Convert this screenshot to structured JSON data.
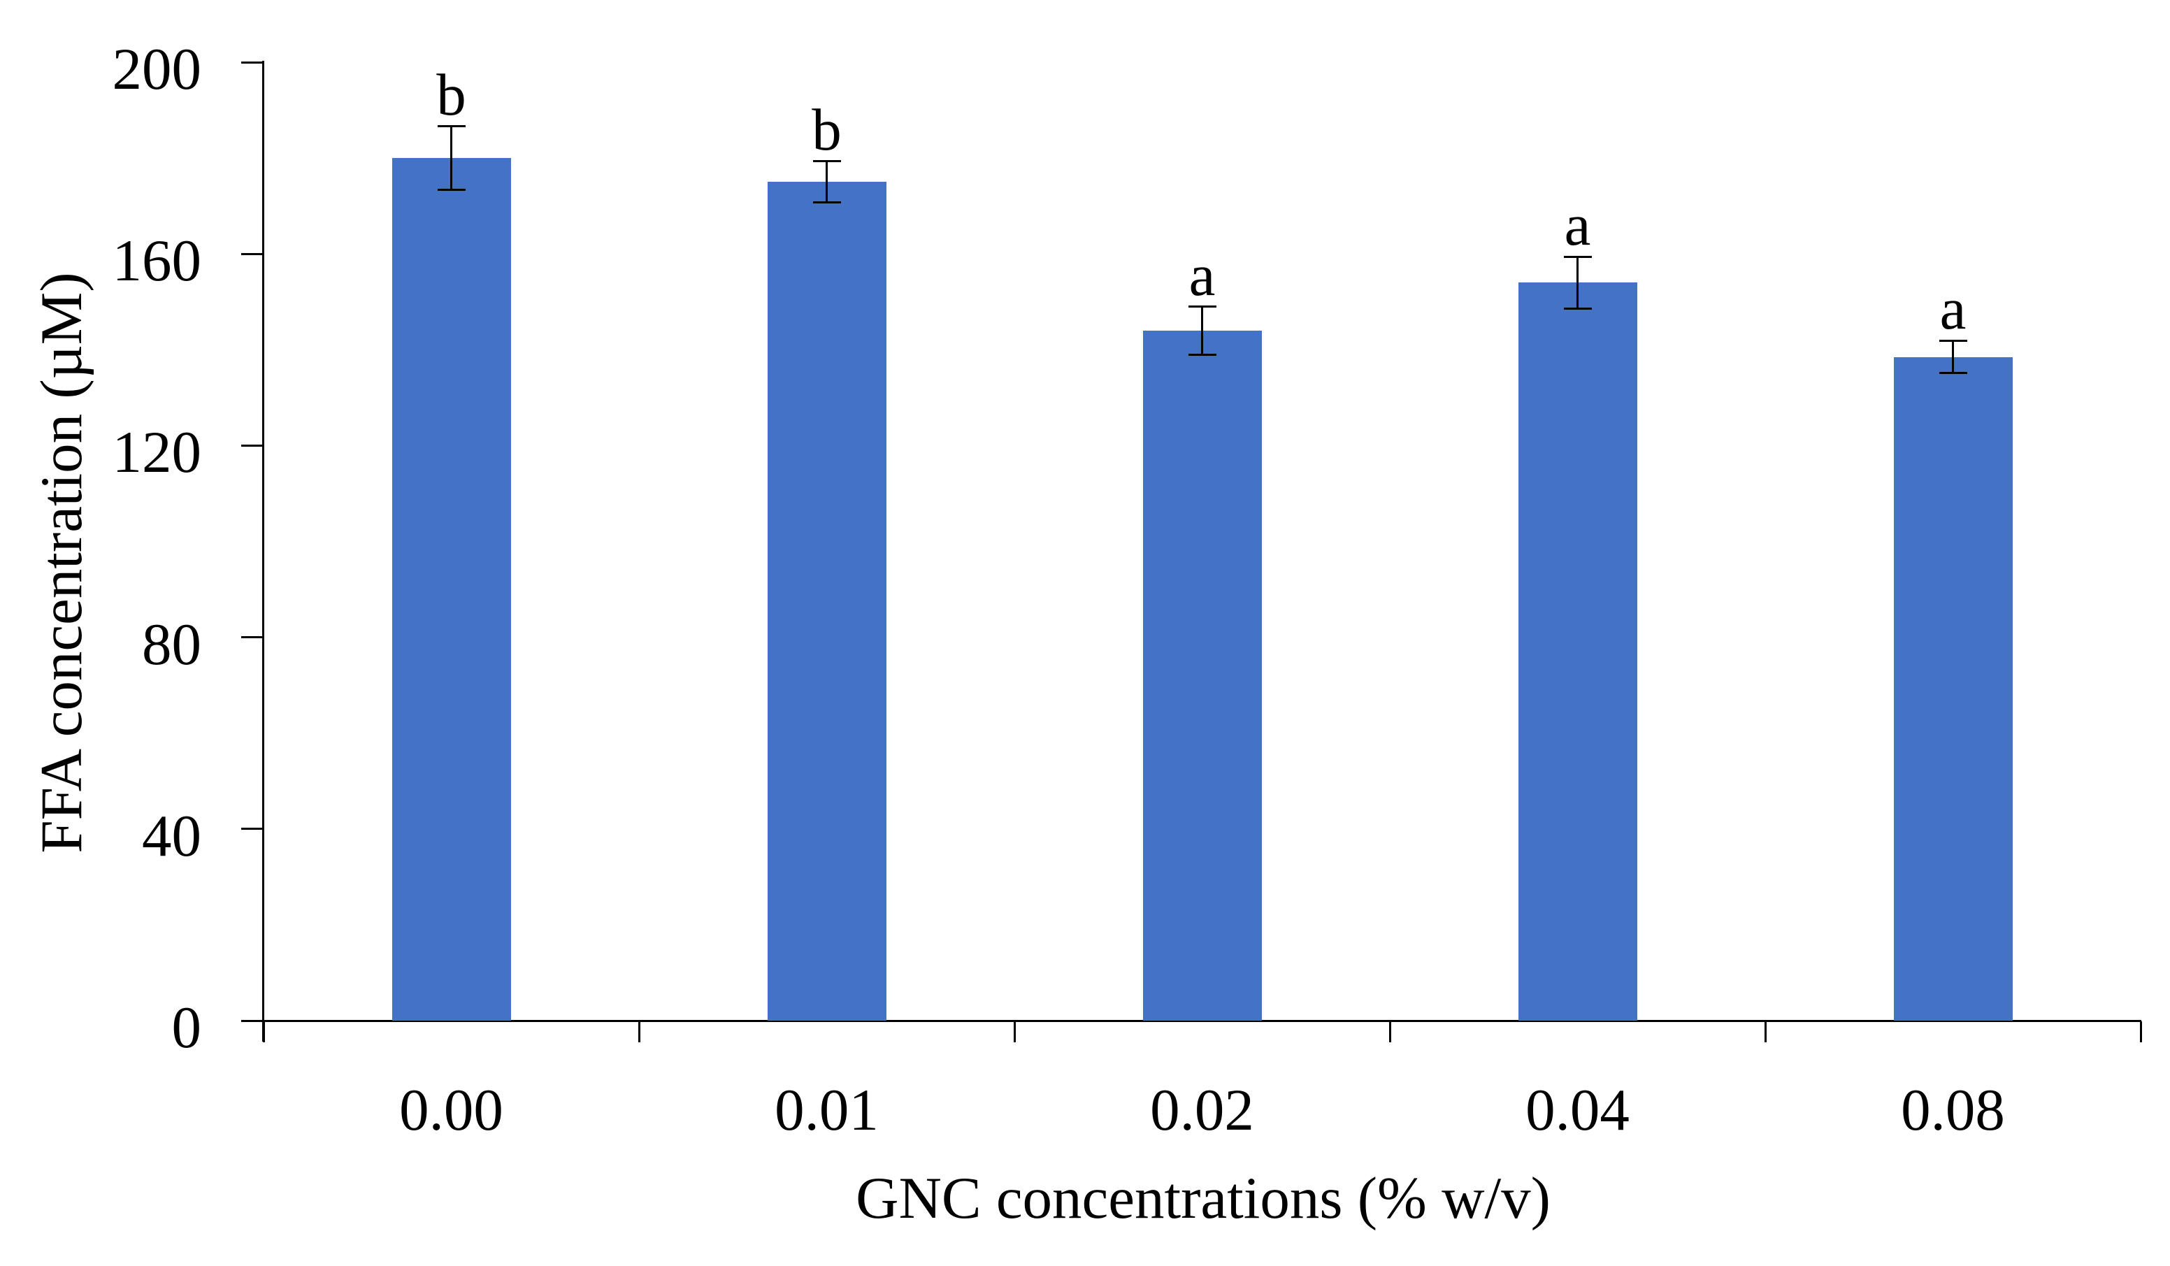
{
  "figure": {
    "background": "#ffffff",
    "axis_color": "#000000",
    "text_color": "#000000"
  },
  "chart_data": {
    "type": "bar",
    "title": "",
    "xlabel": "GNC concentrations (% w/v)",
    "ylabel": "FFA concentration (µM)",
    "categories": [
      "0.00",
      "0.01",
      "0.02",
      "0.04",
      "0.08"
    ],
    "values": [
      180,
      175,
      144,
      154,
      138.5
    ],
    "errors": [
      6.6,
      4.3,
      5.0,
      5.4,
      3.4
    ],
    "significance_letters": [
      "b",
      "b",
      "a",
      "a",
      "a"
    ],
    "ylim": [
      0,
      200
    ],
    "yticks": [
      0,
      40,
      80,
      120,
      160,
      200
    ],
    "bar_color": "#4472C4",
    "grid": "off",
    "legend": "none"
  }
}
